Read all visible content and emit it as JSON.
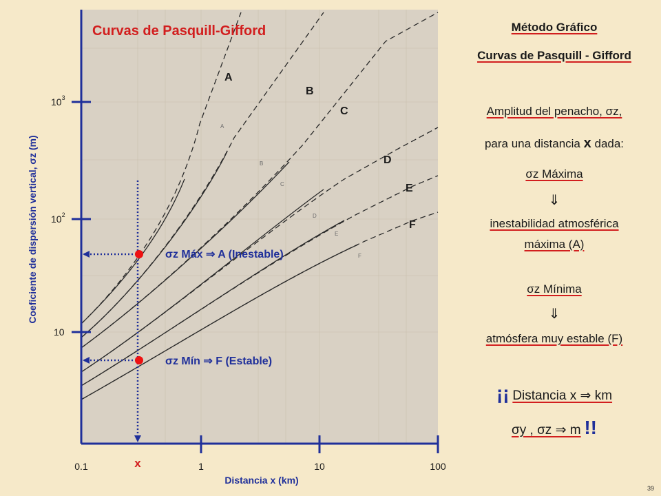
{
  "chart_title": "Curvas de Pasquill-Gifford",
  "y_axis_label": "Coeficiente de dispersión vertical, σz (m)",
  "x_axis_label": "Distancia x (km)",
  "x_ticks": [
    "0.1",
    "1",
    "10",
    "100"
  ],
  "y_ticks": [
    {
      "base": "10",
      "exp": "3"
    },
    {
      "base": "10",
      "exp": "2"
    },
    {
      "base": "10",
      "exp": ""
    }
  ],
  "stability_classes": [
    "A",
    "B",
    "C",
    "D",
    "E",
    "F"
  ],
  "faint_curve_labels": [
    "A",
    "B",
    "C",
    "D",
    "E",
    "F"
  ],
  "marker_x_label": "x",
  "annotation_max": "σz Máx ⇒ A (Inestable)",
  "annotation_min": "σz Mín ⇒ F (Estable)",
  "right_panel": {
    "heading1": "Método Gráfico",
    "heading2": "Curvas de Pasquill - Gifford",
    "l1": "Amplitud del penacho, σz,",
    "l2_a": "para una distancia",
    "l2_x": "x",
    "l2_b": "dada:",
    "l3": "σz Máxima",
    "arrow1": "⇓",
    "l4": "inestabilidad atmosférica",
    "l5": "máxima (A)",
    "l6": "σz Mínima",
    "arrow2": "⇓",
    "l7": "atmósfera muy estable (F)",
    "l8_open": "¡¡",
    "l8_text": "Distancia x ⇒ km",
    "l9_text": "σy , σz ⇒ m",
    "l9_close": "!!"
  },
  "page_number": "39",
  "colors": {
    "background": "#f6e9c9",
    "plot_bg": "#d9d1c4",
    "axis_blue": "#1f2f9a",
    "accent_red": "#d21e1e"
  }
}
